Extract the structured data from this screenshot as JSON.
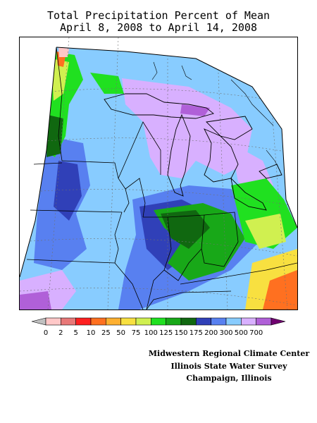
{
  "title": {
    "line1": "Total Precipitation Percent of Mean",
    "line2": "April 8, 2008 to April 14, 2008"
  },
  "legend": {
    "labels": [
      "0",
      "2",
      "5",
      "10",
      "25",
      "50",
      "75",
      "100",
      "125",
      "150",
      "175",
      "200",
      "300",
      "500",
      "700"
    ],
    "colors": [
      "#c0c0c0",
      "#ffc8c8",
      "#e87878",
      "#ff2020",
      "#ff7020",
      "#ffb030",
      "#f8e040",
      "#d0f050",
      "#20e020",
      "#18a818",
      "#106810",
      "#3040b8",
      "#5880f0",
      "#88ccff",
      "#d8b0ff",
      "#b060d8",
      "#700070"
    ]
  },
  "credits": {
    "line1": "Midwestern Regional Climate Center",
    "line2": "Illinois State Water Survey",
    "line3": "Champaign, Illinois"
  }
}
